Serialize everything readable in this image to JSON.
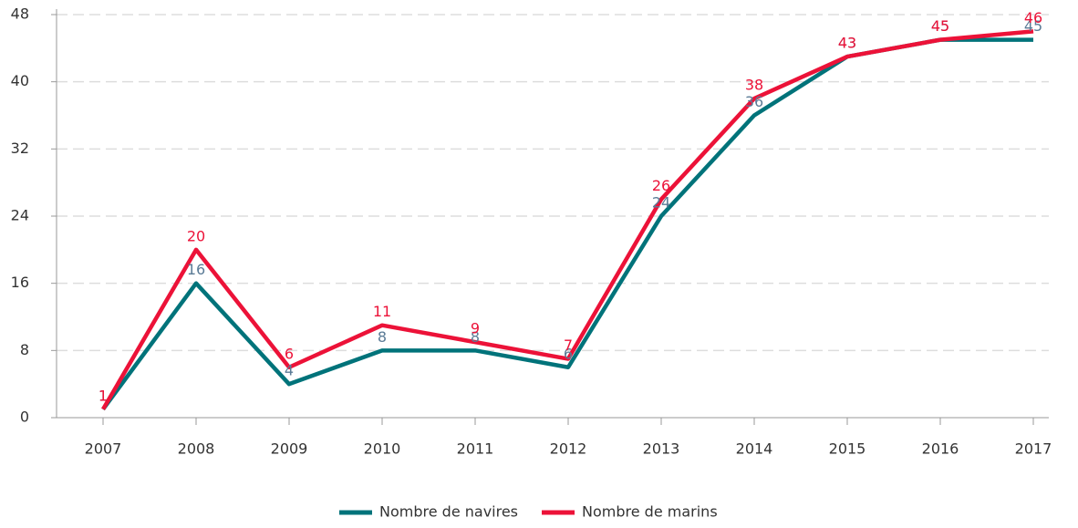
{
  "chart_data": {
    "type": "line",
    "categories": [
      "2007",
      "2008",
      "2009",
      "2010",
      "2011",
      "2012",
      "2013",
      "2014",
      "2015",
      "2016",
      "2017"
    ],
    "series": [
      {
        "name": "Nombre de navires",
        "color": "#00737a",
        "label_color": "#5b7b96",
        "values": [
          1,
          16,
          4,
          8,
          8,
          6,
          24,
          36,
          43,
          45,
          45
        ]
      },
      {
        "name": "Nombre de marins",
        "color": "#ec1238",
        "label_color": "#ec1238",
        "values": [
          1,
          20,
          6,
          11,
          9,
          7,
          26,
          38,
          43,
          45,
          46
        ]
      }
    ],
    "ylim": [
      0,
      48
    ],
    "yticks": [
      0,
      8,
      16,
      24,
      32,
      40,
      48
    ],
    "grid": true,
    "legend": "bottom"
  }
}
